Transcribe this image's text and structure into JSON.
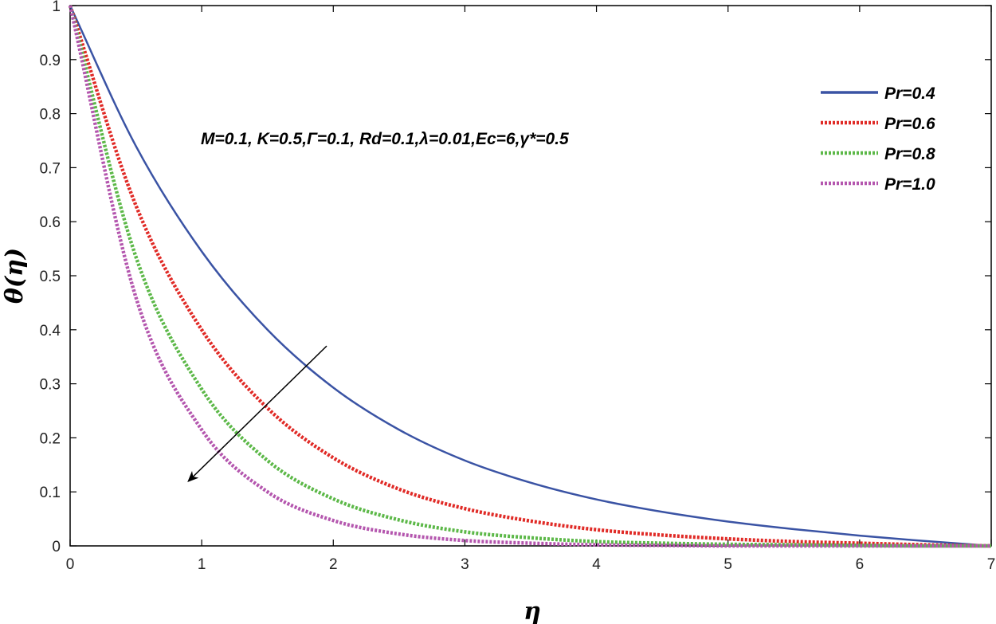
{
  "chart_data": {
    "type": "line",
    "xlabel": "η",
    "ylabel": "θ(η)",
    "xlim": [
      0,
      7
    ],
    "ylim": [
      0,
      1
    ],
    "xticks": [
      0,
      1,
      2,
      3,
      4,
      5,
      6,
      7
    ],
    "yticks": [
      0,
      0.1,
      0.2,
      0.3,
      0.4,
      0.5,
      0.6,
      0.7,
      0.8,
      0.9,
      1
    ],
    "ytick_labels": [
      "0",
      "0.1",
      "0.2",
      "0.3",
      "0.4",
      "0.5",
      "0.6",
      "0.7",
      "0.8",
      "0.9",
      "1"
    ],
    "grid": false,
    "legend_position": "top-right",
    "annotation": "M=0.1, K=0.5,Γ=0.1, Rd=0.1,λ=0.01,Ec=6,γ*=0.5",
    "arrow": {
      "from": [
        1.95,
        0.37
      ],
      "to": [
        0.9,
        0.12
      ]
    },
    "series": [
      {
        "name": "Pr=0.4",
        "color": "#3a53a4",
        "style": "solid",
        "x": [
          0,
          0.5,
          1,
          1.5,
          2,
          2.5,
          3,
          3.5,
          4,
          4.5,
          5,
          5.5,
          6,
          6.5,
          7
        ],
        "y": [
          1.0,
          0.74,
          0.545,
          0.4,
          0.293,
          0.215,
          0.158,
          0.117,
          0.086,
          0.063,
          0.045,
          0.031,
          0.019,
          0.009,
          0.0
        ]
      },
      {
        "name": "Pr=0.6",
        "color": "#e02a26",
        "style": "dotted",
        "x": [
          0,
          0.5,
          1,
          1.5,
          2,
          2.5,
          3,
          3.5,
          4,
          4.5,
          5,
          5.5,
          6,
          6.5,
          7
        ],
        "y": [
          1.0,
          0.63,
          0.4,
          0.255,
          0.163,
          0.105,
          0.069,
          0.046,
          0.03,
          0.02,
          0.013,
          0.008,
          0.005,
          0.002,
          0.0
        ]
      },
      {
        "name": "Pr=0.8",
        "color": "#5cb848",
        "style": "dotted",
        "x": [
          0,
          0.5,
          1,
          1.5,
          2,
          2.5,
          3,
          3.5,
          4,
          4.5,
          5,
          5.5,
          6,
          6.5,
          7
        ],
        "y": [
          1.0,
          0.535,
          0.29,
          0.158,
          0.087,
          0.048,
          0.026,
          0.015,
          0.008,
          0.005,
          0.003,
          0.002,
          0.001,
          0.0,
          0.0
        ]
      },
      {
        "name": "Pr=1.0",
        "color": "#b456ae",
        "style": "dotted",
        "x": [
          0,
          0.5,
          1,
          1.5,
          2,
          2.5,
          3,
          3.5,
          4,
          4.5,
          5,
          5.5,
          6,
          6.5,
          7
        ],
        "y": [
          1.0,
          0.46,
          0.215,
          0.1,
          0.047,
          0.022,
          0.01,
          0.005,
          0.002,
          0.001,
          0.0,
          0.0,
          0.0,
          0.0,
          0.0
        ]
      }
    ]
  }
}
